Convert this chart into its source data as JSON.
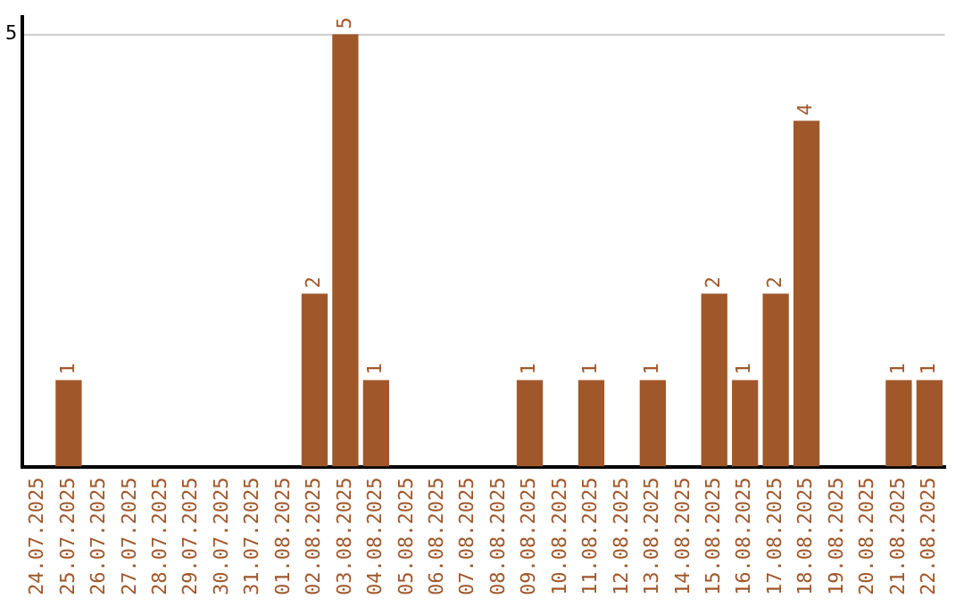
{
  "chart_data": {
    "type": "bar",
    "categories": [
      "24.07.2025",
      "25.07.2025",
      "26.07.2025",
      "27.07.2025",
      "28.07.2025",
      "29.07.2025",
      "30.07.2025",
      "31.07.2025",
      "01.08.2025",
      "02.08.2025",
      "03.08.2025",
      "04.08.2025",
      "05.08.2025",
      "06.08.2025",
      "07.08.2025",
      "08.08.2025",
      "09.08.2025",
      "10.08.2025",
      "11.08.2025",
      "12.08.2025",
      "13.08.2025",
      "14.08.2025",
      "15.08.2025",
      "16.08.2025",
      "17.08.2025",
      "18.08.2025",
      "19.08.2025",
      "20.08.2025",
      "21.08.2025",
      "22.08.2025"
    ],
    "values": [
      0,
      1,
      0,
      0,
      0,
      0,
      0,
      0,
      0,
      2,
      5,
      1,
      0,
      0,
      0,
      0,
      1,
      0,
      1,
      0,
      1,
      0,
      2,
      1,
      2,
      4,
      0,
      0,
      1,
      1
    ],
    "value_labels": [
      null,
      "1",
      null,
      null,
      null,
      null,
      null,
      null,
      null,
      "2",
      "5",
      "1",
      null,
      null,
      null,
      null,
      "1",
      null,
      "1",
      null,
      "1",
      null,
      "2",
      "1",
      "2",
      "4",
      null,
      null,
      "1",
      "1"
    ],
    "color": "#a0572a",
    "ylim": [
      0,
      5.2
    ],
    "yticks": [
      5
    ],
    "grid": "y",
    "legend": false
  }
}
